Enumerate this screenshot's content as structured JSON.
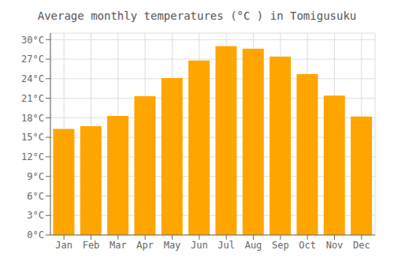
{
  "chart_data": {
    "type": "bar",
    "title": "Average monthly temperatures (°C ) in Tomigusuku",
    "categories": [
      "Jan",
      "Feb",
      "Mar",
      "Apr",
      "May",
      "Jun",
      "Jul",
      "Aug",
      "Sep",
      "Oct",
      "Nov",
      "Dec"
    ],
    "values": [
      16.3,
      16.7,
      18.3,
      21.3,
      24.1,
      26.8,
      29.0,
      28.6,
      27.4,
      24.7,
      21.4,
      18.2
    ],
    "color": "#FFA500",
    "ylim": [
      0,
      31
    ],
    "yticks": [
      {
        "value": 0,
        "label": "0°C"
      },
      {
        "value": 3,
        "label": "3°C"
      },
      {
        "value": 6,
        "label": "6°C"
      },
      {
        "value": 9,
        "label": "9°C"
      },
      {
        "value": 12,
        "label": "12°C"
      },
      {
        "value": 15,
        "label": "15°C"
      },
      {
        "value": 18,
        "label": "18°C"
      },
      {
        "value": 21,
        "label": "21°C"
      },
      {
        "value": 24,
        "label": "24°C"
      },
      {
        "value": 27,
        "label": "27°C"
      },
      {
        "value": 30,
        "label": "30°C"
      }
    ],
    "grid": true
  }
}
